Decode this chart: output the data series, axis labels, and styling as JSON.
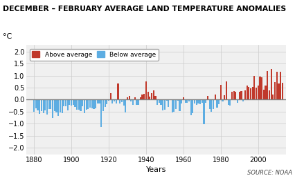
{
  "title": "DECEMBER – FEBRUARY AVERAGE LAND TEMPERATURE ANOMALIES",
  "ylabel": "°C",
  "xlabel": "Years",
  "source": "SOURCE: NOAA",
  "ylim": [
    -2.3,
    2.3
  ],
  "yticks": [
    -2.0,
    -1.5,
    -1.0,
    -0.5,
    0.0,
    0.5,
    1.0,
    1.5,
    2.0
  ],
  "xticks": [
    1880,
    1900,
    1920,
    1940,
    1960,
    1980,
    2000
  ],
  "above_color": "#c0392b",
  "below_color": "#5dade2",
  "zero_line_color": "#808080",
  "background_color": "#f0f0f0",
  "grid_color": "#cccccc",
  "years": [
    1880,
    1881,
    1882,
    1883,
    1884,
    1885,
    1886,
    1887,
    1888,
    1889,
    1890,
    1891,
    1892,
    1893,
    1894,
    1895,
    1896,
    1897,
    1898,
    1899,
    1900,
    1901,
    1902,
    1903,
    1904,
    1905,
    1906,
    1907,
    1908,
    1909,
    1910,
    1911,
    1912,
    1913,
    1914,
    1915,
    1916,
    1917,
    1918,
    1919,
    1920,
    1921,
    1922,
    1923,
    1924,
    1925,
    1926,
    1927,
    1928,
    1929,
    1930,
    1931,
    1932,
    1933,
    1934,
    1935,
    1936,
    1937,
    1938,
    1939,
    1940,
    1941,
    1942,
    1943,
    1944,
    1945,
    1946,
    1947,
    1948,
    1949,
    1950,
    1951,
    1952,
    1953,
    1954,
    1955,
    1956,
    1957,
    1958,
    1959,
    1960,
    1961,
    1962,
    1963,
    1964,
    1965,
    1966,
    1967,
    1968,
    1969,
    1970,
    1971,
    1972,
    1973,
    1974,
    1975,
    1976,
    1977,
    1978,
    1979,
    1980,
    1981,
    1982,
    1983,
    1984,
    1985,
    1986,
    1987,
    1988,
    1989,
    1990,
    1991,
    1992,
    1993,
    1994,
    1995,
    1996,
    1997,
    1998,
    1999,
    2000,
    2001,
    2002,
    2003,
    2004,
    2005,
    2006,
    2007,
    2008,
    2009,
    2010,
    2011,
    2012,
    2013
  ],
  "anomalies": [
    -0.49,
    -0.35,
    -0.45,
    -0.6,
    -0.47,
    -0.55,
    -0.46,
    -0.62,
    -0.39,
    -0.4,
    -0.77,
    -0.48,
    -0.53,
    -0.67,
    -0.52,
    -0.57,
    -0.27,
    -0.28,
    -0.46,
    -0.22,
    -0.25,
    -0.21,
    -0.31,
    -0.42,
    -0.42,
    -0.48,
    -0.27,
    -0.55,
    -0.42,
    -0.38,
    -0.34,
    -0.35,
    -0.38,
    -0.35,
    -0.16,
    -0.17,
    -1.15,
    -0.47,
    -0.29,
    -0.19,
    -0.05,
    0.26,
    -0.17,
    -0.06,
    -0.15,
    0.68,
    -0.15,
    -0.1,
    -0.25,
    -0.53,
    0.1,
    0.17,
    -0.07,
    -0.23,
    0.09,
    -0.22,
    -0.22,
    0.11,
    0.21,
    0.24,
    0.77,
    0.32,
    0.12,
    0.27,
    0.39,
    0.16,
    -0.22,
    -0.14,
    -0.22,
    -0.44,
    -0.42,
    -0.05,
    -0.3,
    -0.01,
    -0.54,
    -0.49,
    -0.38,
    -0.04,
    -0.48,
    -0.17,
    0.09,
    -0.14,
    -0.12,
    -0.08,
    -0.65,
    -0.56,
    -0.17,
    -0.21,
    -0.16,
    -0.19,
    -0.14,
    -1.02,
    -0.12,
    0.17,
    -0.38,
    -0.5,
    -0.38,
    0.22,
    -0.34,
    -0.2,
    0.62,
    -0.06,
    0.19,
    0.76,
    -0.22,
    -0.24,
    0.34,
    0.37,
    0.34,
    -0.14,
    0.33,
    0.37,
    -0.06,
    0.38,
    0.58,
    0.54,
    0.46,
    0.53,
    1.0,
    0.51,
    0.59,
    0.96,
    0.93,
    0.42,
    0.59,
    1.18,
    0.38,
    1.28,
    0.21,
    0.72,
    1.15,
    0.68,
    1.16,
    0.7
  ]
}
